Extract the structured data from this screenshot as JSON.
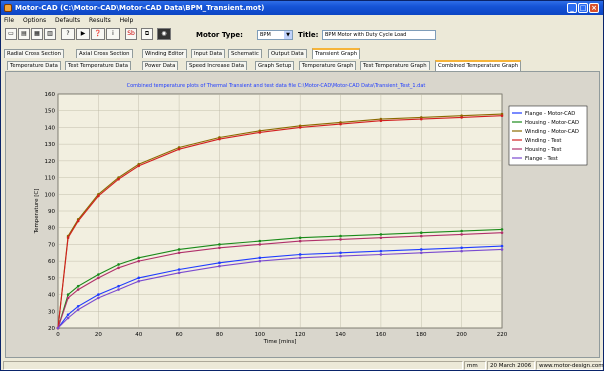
{
  "window": {
    "title": "Motor-CAD (C:\\Motor-CAD\\Motor-CAD Data\\BPM_Transient.mot)",
    "minimize": "_",
    "maximize": "□",
    "close": "×"
  },
  "menu": [
    "File",
    "Options",
    "Defaults",
    "Results",
    "Help"
  ],
  "toolbar": {
    "motor_type_label": "Motor Type:",
    "motor_type_value": "BPM",
    "title_label": "Title:",
    "title_value": "BPM Motor with Duty Cycle Load",
    "icons": [
      "new-file-icon",
      "open-folder-icon",
      "save-icon",
      "print-icon",
      "question-icon",
      "run-icon",
      "help-book-icon",
      "info-icon",
      "sb-icon",
      "copy-icon",
      "motor-icon"
    ]
  },
  "main_tabs": [
    "Radial Cross Section",
    "Axial Cross Section",
    "Winding Editor",
    "Input Data",
    "Schematic",
    "Output Data",
    "Transient Graph"
  ],
  "main_tab_active": 6,
  "sub_tabs": [
    "Temperature Data",
    "Test Temperature Data",
    "Power Data",
    "Speed Increase Data",
    "Graph Setup",
    "Temperature Graph",
    "Test Temperature Graph",
    "Combined Temperature Graph"
  ],
  "sub_tab_active": 7,
  "status": {
    "units": "mm",
    "date": "20 March 2006",
    "website": "www.motor-design.com"
  },
  "chart_data": {
    "type": "line",
    "title": "Combined temperature plots of Thermal Transient and test data file C:\\Motor-CAD\\Motor-CAD Data\\Transient_Test_1.dat",
    "xlabel": "Time [mins]",
    "ylabel": "Temperature [C]",
    "xlim": [
      0,
      220
    ],
    "ylim": [
      20,
      160
    ],
    "xticks": [
      0,
      20,
      40,
      60,
      80,
      100,
      120,
      140,
      160,
      180,
      200,
      220
    ],
    "yticks": [
      20,
      30,
      40,
      50,
      60,
      70,
      80,
      90,
      100,
      110,
      120,
      130,
      140,
      150,
      160
    ],
    "grid": true,
    "legend_position": "top-right",
    "series": [
      {
        "name": "Flange - Motor-CAD",
        "color": "#1f3cff",
        "x": [
          0,
          5,
          10,
          20,
          30,
          40,
          60,
          80,
          100,
          120,
          140,
          160,
          180,
          200,
          220
        ],
        "y": [
          20,
          28,
          33,
          40,
          45,
          50,
          55,
          59,
          62,
          64,
          65,
          66,
          67,
          68,
          69
        ]
      },
      {
        "name": "Housing - Motor-CAD",
        "color": "#1a8a1a",
        "x": [
          0,
          5,
          10,
          20,
          30,
          40,
          60,
          80,
          100,
          120,
          140,
          160,
          180,
          200,
          220
        ],
        "y": [
          20,
          40,
          45,
          52,
          58,
          62,
          67,
          70,
          72,
          74,
          75,
          76,
          77,
          78,
          79
        ]
      },
      {
        "name": "Winding - Motor-CAD",
        "color": "#8a6a00",
        "x": [
          0,
          5,
          10,
          20,
          30,
          40,
          60,
          80,
          100,
          120,
          140,
          160,
          180,
          200,
          220
        ],
        "y": [
          20,
          75,
          85,
          100,
          110,
          118,
          128,
          134,
          138,
          141,
          143,
          145,
          146,
          147,
          148
        ]
      },
      {
        "name": "Winding - Test",
        "color": "#d22020",
        "x": [
          0,
          5,
          10,
          20,
          30,
          40,
          60,
          80,
          100,
          120,
          140,
          160,
          180,
          200,
          220
        ],
        "y": [
          20,
          74,
          84,
          99,
          109,
          117,
          127,
          133,
          137,
          140,
          142,
          144,
          145,
          146,
          147
        ]
      },
      {
        "name": "Housing - Test",
        "color": "#b0306a",
        "x": [
          0,
          5,
          10,
          20,
          30,
          40,
          60,
          80,
          100,
          120,
          140,
          160,
          180,
          200,
          220
        ],
        "y": [
          20,
          38,
          43,
          50,
          56,
          60,
          65,
          68,
          70,
          72,
          73,
          74,
          75,
          76,
          77
        ]
      },
      {
        "name": "Flange - Test",
        "color": "#7a4ad0",
        "x": [
          0,
          5,
          10,
          20,
          30,
          40,
          60,
          80,
          100,
          120,
          140,
          160,
          180,
          200,
          220
        ],
        "y": [
          20,
          26,
          31,
          38,
          43,
          48,
          53,
          57,
          60,
          62,
          63,
          64,
          65,
          66,
          67
        ]
      }
    ]
  }
}
